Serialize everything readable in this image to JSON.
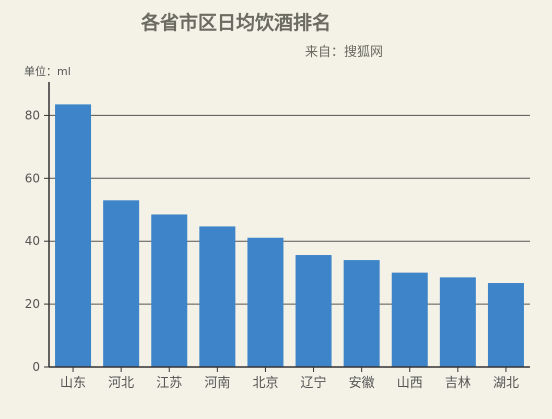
{
  "chart_data": {
    "type": "bar",
    "title": "各省市区日均饮酒排名",
    "subtitle": "来自：搜狐网",
    "ylabel": "单位：ml",
    "categories": [
      "山东",
      "河北",
      "江苏",
      "河南",
      "北京",
      "辽宁",
      "安徽",
      "山西",
      "吉林",
      "湖北"
    ],
    "values": [
      83.5,
      53,
      48.5,
      44.7,
      41.1,
      35.6,
      34,
      30,
      28.5,
      26.7
    ],
    "ylim": [
      0,
      90
    ],
    "yticks": [
      0,
      20,
      40,
      60,
      80
    ],
    "grid": true,
    "legend": "none",
    "bar_color": "#3d84c9",
    "grid_color": "#555555",
    "background": "#f4f2e6"
  }
}
